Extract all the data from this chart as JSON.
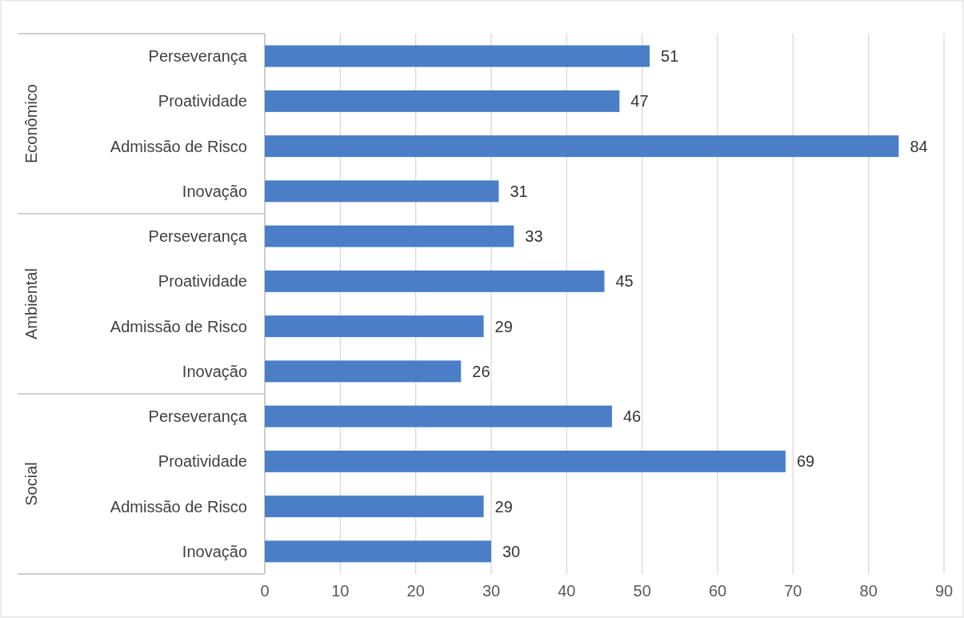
{
  "chart_data": {
    "type": "bar",
    "orientation": "horizontal",
    "categories": [
      "Perseverança",
      "Proatividade",
      "Admissão de Risco",
      "Inovação",
      "Perseverança",
      "Proatividade",
      "Admissão de Risco",
      "Inovação",
      "Perseverança",
      "Proatividade",
      "Admissão de Risco",
      "Inovação"
    ],
    "values": [
      51,
      47,
      84,
      31,
      33,
      45,
      29,
      26,
      46,
      69,
      29,
      30
    ],
    "color": "#4a7fc8",
    "xlim": [
      0,
      90
    ],
    "xticks": [
      0,
      10,
      20,
      30,
      40,
      50,
      60,
      70,
      80,
      90
    ],
    "grid": "x",
    "data_labels": true,
    "annotations": [
      "Econômico",
      "Ambiental",
      "Social"
    ]
  }
}
